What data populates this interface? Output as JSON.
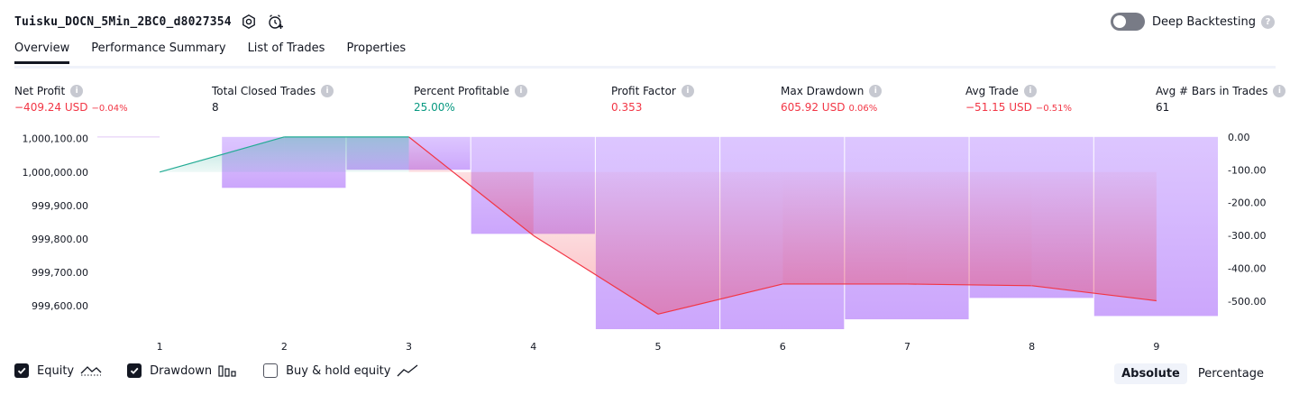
{
  "header": {
    "strategy_name": "Tuisku_DOCN_5Min_2BC0_d8027354",
    "deep_backtesting_label": "Deep Backtesting",
    "icons": [
      "settings-icon",
      "alarm-add-icon",
      "help-icon"
    ]
  },
  "tabs": [
    {
      "label": "Overview",
      "active": true
    },
    {
      "label": "Performance Summary",
      "active": false
    },
    {
      "label": "List of Trades",
      "active": false
    },
    {
      "label": "Properties",
      "active": false
    }
  ],
  "metrics": {
    "net_profit": {
      "label": "Net Profit",
      "value": "−409.24 USD",
      "pct": "−0.04%"
    },
    "total_closed_trades": {
      "label": "Total Closed Trades",
      "value": "8"
    },
    "percent_profitable": {
      "label": "Percent Profitable",
      "value": "25.00%"
    },
    "profit_factor": {
      "label": "Profit Factor",
      "value": "0.353"
    },
    "max_drawdown": {
      "label": "Max Drawdown",
      "value": "605.92 USD",
      "pct": "0.06%"
    },
    "avg_trade": {
      "label": "Avg Trade",
      "value": "−51.15 USD",
      "pct": "−0.51%"
    },
    "avg_bars": {
      "label": "Avg # Bars in Trades",
      "value": "61"
    }
  },
  "chart_data": {
    "type": "line",
    "x": [
      1,
      2,
      3,
      4,
      5,
      6,
      7,
      8,
      9
    ],
    "x_tick_labels": [
      "1",
      "2",
      "3",
      "4",
      "5",
      "6",
      "7",
      "8",
      "9"
    ],
    "left_axis": {
      "ticks": [
        1000100,
        1000000,
        999900,
        999800,
        999700,
        999600
      ],
      "tick_labels": [
        "1,000,100.00",
        "1,000,000.00",
        "999,900.00",
        "999,800.00",
        "999,700.00",
        "999,600.00"
      ],
      "range": [
        999530,
        1000110
      ]
    },
    "right_axis": {
      "ticks": [
        0,
        -100,
        -200,
        -300,
        -400,
        -500
      ],
      "tick_labels": [
        "0.00",
        "-100.00",
        "-200.00",
        "-300.00",
        "-400.00",
        "-500.00"
      ],
      "range": [
        -585,
        5
      ]
    },
    "series": [
      {
        "name": "Equity",
        "axis": "left",
        "values": [
          1000000,
          1000105,
          1000105,
          999810,
          999575,
          999665,
          999665,
          999660,
          999615
        ]
      },
      {
        "name": "Drawdown",
        "axis": "right",
        "style": "bar",
        "values": [
          0,
          -155,
          -100,
          -295,
          -585,
          -585,
          -555,
          -490,
          -545
        ]
      }
    ],
    "colors": {
      "equity_up": "#22ab94",
      "equity_down": "#f23645",
      "drawdown": "#b388ff"
    }
  },
  "legend": {
    "items": [
      {
        "label": "Equity",
        "checked": true
      },
      {
        "label": "Drawdown",
        "checked": true
      },
      {
        "label": "Buy & hold equity",
        "checked": false
      }
    ]
  },
  "mode": {
    "absolute_label": "Absolute",
    "percentage_label": "Percentage",
    "selected": "Absolute"
  }
}
